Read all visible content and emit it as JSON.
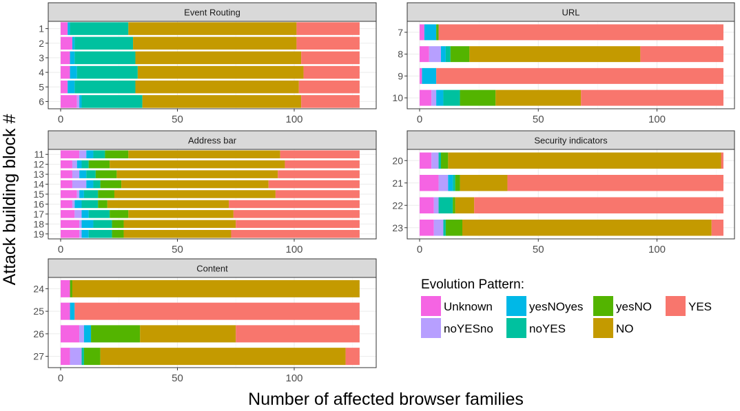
{
  "chart_data": {
    "type": "bar",
    "orientation": "horizontal",
    "stacked": true,
    "xlabel": "Number of affected browser families",
    "ylabel": "Attack building block #",
    "xlim": [
      0,
      128
    ],
    "xticks": [
      "0",
      "50",
      "100"
    ],
    "grid": true,
    "legend": {
      "title": "Evolution Pattern:",
      "placement": "bottom-right",
      "entries": [
        "Unknown",
        "yesNOyes",
        "yesNO",
        "YES",
        "noYESno",
        "noYES",
        "NO"
      ]
    },
    "series_order": [
      "Unknown",
      "noYESno",
      "yesNOyes",
      "noYES",
      "yesNO",
      "NO",
      "YES"
    ],
    "colors": {
      "Unknown": "#F564E3",
      "noYESno": "#B79FFF",
      "yesNOyes": "#00B8E7",
      "noYES": "#00C19F",
      "yesNO": "#53B400",
      "NO": "#C49A00",
      "YES": "#F8766D"
    },
    "panels": [
      {
        "title": "Event Routing",
        "categories": [
          "1",
          "2",
          "3",
          "4",
          "5",
          "6"
        ],
        "rows": [
          [
            3,
            0,
            1,
            25,
            0,
            72,
            27
          ],
          [
            5,
            0,
            1,
            25,
            0,
            70,
            27
          ],
          [
            4,
            0,
            2,
            26,
            0,
            71,
            25
          ],
          [
            4,
            0,
            3,
            26,
            0,
            71,
            24
          ],
          [
            3,
            0,
            3,
            26,
            0,
            70,
            26
          ],
          [
            7,
            1,
            1,
            26,
            0,
            68,
            25
          ]
        ]
      },
      {
        "title": "URL",
        "categories": [
          "7",
          "8",
          "9",
          "10"
        ],
        "rows": [
          [
            2,
            0,
            5,
            0,
            1,
            0,
            120
          ],
          [
            4,
            5,
            2,
            2,
            8,
            72,
            35
          ],
          [
            1,
            0,
            6,
            0,
            0,
            0,
            121
          ],
          [
            5,
            2,
            3,
            7,
            15,
            36,
            60
          ]
        ]
      },
      {
        "title": "Address bar",
        "categories": [
          "11",
          "12",
          "13",
          "14",
          "15",
          "16",
          "17",
          "18",
          "19"
        ],
        "rows": [
          [
            8,
            3,
            3,
            5,
            10,
            65,
            34
          ],
          [
            5,
            2,
            2,
            3,
            9,
            75,
            32
          ],
          [
            5,
            3,
            3,
            4,
            9,
            69,
            35
          ],
          [
            5,
            6,
            3,
            3,
            9,
            63,
            39
          ],
          [
            7,
            1,
            2,
            6,
            7,
            69,
            36
          ],
          [
            5,
            1,
            3,
            7,
            4,
            52,
            56
          ],
          [
            6,
            3,
            3,
            9,
            8,
            45,
            54
          ],
          [
            8,
            1,
            5,
            8,
            5,
            48,
            53
          ],
          [
            8,
            1,
            3,
            10,
            5,
            46,
            55
          ]
        ]
      },
      {
        "title": "Security indicators",
        "categories": [
          "20",
          "21",
          "22",
          "23"
        ],
        "rows": [
          [
            5,
            3,
            0,
            1,
            3,
            115,
            1
          ],
          [
            8,
            4,
            2,
            1,
            2,
            20,
            91
          ],
          [
            6,
            2,
            0,
            6,
            1,
            8,
            105
          ],
          [
            6,
            4,
            0,
            1,
            7,
            105,
            5
          ]
        ]
      },
      {
        "title": "Content",
        "categories": [
          "24",
          "25",
          "26",
          "27"
        ],
        "rows": [
          [
            4,
            0,
            0,
            0,
            1,
            123,
            0
          ],
          [
            4,
            0,
            2,
            0,
            0,
            0,
            122
          ],
          [
            8,
            2,
            3,
            0,
            21,
            41,
            53
          ],
          [
            4,
            5,
            0,
            1,
            7,
            105,
            6
          ]
        ]
      }
    ]
  }
}
